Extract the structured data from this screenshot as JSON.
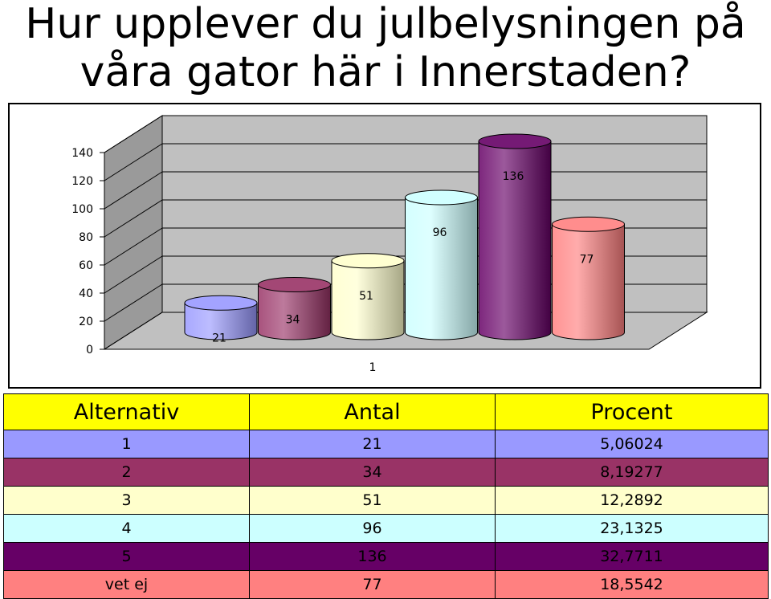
{
  "page": {
    "title_line1": "Hur upplever du julbelysningen på",
    "title_line2": "våra gator här i Innerstaden?"
  },
  "chart_data": {
    "type": "bar",
    "style": "3d-cylinder",
    "categories": [
      "1"
    ],
    "series": [
      {
        "values": [
          21
        ],
        "color": "#9999ff"
      },
      {
        "values": [
          34
        ],
        "color": "#993366"
      },
      {
        "values": [
          51
        ],
        "color": "#ffffcc"
      },
      {
        "values": [
          96
        ],
        "color": "#ccffff"
      },
      {
        "values": [
          136
        ],
        "color": "#660066"
      },
      {
        "values": [
          77
        ],
        "color": "#ff8080"
      }
    ],
    "y_ticks": [
      "0",
      "20",
      "40",
      "60",
      "80",
      "100",
      "120",
      "140"
    ],
    "ylim": [
      0,
      140
    ],
    "grid": true,
    "legend": "none"
  },
  "table": {
    "headers": [
      "Alternativ",
      "Antal",
      "Procent"
    ],
    "rows": [
      {
        "alt": "1",
        "antal": "21",
        "procent": "5,06024"
      },
      {
        "alt": "2",
        "antal": "34",
        "procent": "8,19277"
      },
      {
        "alt": "3",
        "antal": "51",
        "procent": "12,2892"
      },
      {
        "alt": "4",
        "antal": "96",
        "procent": "23,1325"
      },
      {
        "alt": "5",
        "antal": "136",
        "procent": "32,7711"
      },
      {
        "alt": "vet ej",
        "antal": "77",
        "procent": "18,5542"
      }
    ]
  }
}
